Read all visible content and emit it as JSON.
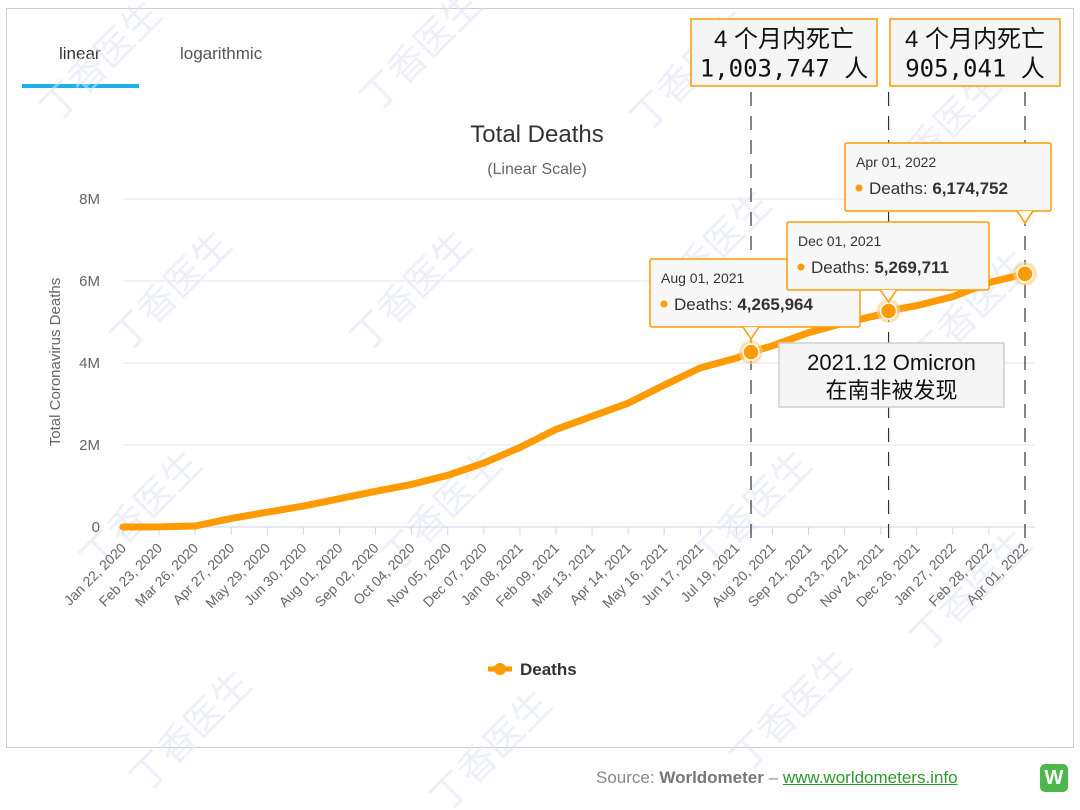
{
  "tabs": [
    {
      "label": "linear",
      "active": true
    },
    {
      "label": "logarithmic",
      "active": false
    }
  ],
  "source": {
    "prefix": "Source:",
    "name": "Worldometer",
    "dash": "–",
    "link": "www.worldometers.info",
    "logo_letter": "W"
  },
  "watermark_text": "丁香医生",
  "colors": {
    "series": "#ff9a00",
    "accent": "#1ab2e8",
    "grid": "#e6e6e6",
    "axis": "#ccd6eb"
  },
  "chart_data": {
    "type": "line",
    "title": "Total Deaths",
    "subtitle": "(Linear Scale)",
    "xlabel": "",
    "ylabel": "Total Coronavirus Deaths",
    "ylim": [
      0,
      8000000
    ],
    "y_ticks": [
      {
        "value": 0,
        "label": "0"
      },
      {
        "value": 2000000,
        "label": "2M"
      },
      {
        "value": 4000000,
        "label": "4M"
      },
      {
        "value": 6000000,
        "label": "6M"
      },
      {
        "value": 8000000,
        "label": "8M"
      }
    ],
    "x_tick_labels": [
      "Jan 22, 2020",
      "Feb 23, 2020",
      "Mar 26, 2020",
      "Apr 27, 2020",
      "May 29, 2020",
      "Jun 30, 2020",
      "Aug 01, 2020",
      "Sep 02, 2020",
      "Oct 04, 2020",
      "Nov 05, 2020",
      "Dec 07, 2020",
      "Jan 08, 2021",
      "Feb 09, 2021",
      "Mar 13, 2021",
      "Apr 14, 2021",
      "May 16, 2021",
      "Jun 17, 2021",
      "Jul 19, 2021",
      "Aug 20, 2021",
      "Sep 21, 2021",
      "Oct 23, 2021",
      "Nov 24, 2021",
      "Dec 26, 2021",
      "Jan 27, 2022",
      "Feb 28, 2022",
      "Apr 01, 2022"
    ],
    "legend": {
      "label": "Deaths",
      "position": "bottom-center"
    },
    "grid": true,
    "series": [
      {
        "name": "Deaths",
        "x": [
          "Jan 22, 2020",
          "Feb 23, 2020",
          "Mar 26, 2020",
          "Apr 27, 2020",
          "May 29, 2020",
          "Jun 30, 2020",
          "Aug 01, 2020",
          "Sep 02, 2020",
          "Oct 04, 2020",
          "Nov 05, 2020",
          "Dec 07, 2020",
          "Jan 08, 2021",
          "Feb 09, 2021",
          "Mar 13, 2021",
          "Apr 14, 2021",
          "May 16, 2021",
          "Jun 17, 2021",
          "Jul 19, 2021",
          "Aug 01, 2021",
          "Aug 20, 2021",
          "Sep 21, 2021",
          "Oct 23, 2021",
          "Nov 24, 2021",
          "Dec 01, 2021",
          "Dec 26, 2021",
          "Jan 27, 2022",
          "Feb 28, 2022",
          "Apr 01, 2022"
        ],
        "values": [
          17,
          2000,
          25000,
          210000,
          360000,
          510000,
          690000,
          870000,
          1040000,
          1260000,
          1560000,
          1940000,
          2380000,
          2700000,
          3020000,
          3460000,
          3880000,
          4120000,
          4265964,
          4420000,
          4740000,
          4980000,
          5180000,
          5269711,
          5400000,
          5620000,
          5960000,
          6174752
        ]
      }
    ],
    "tooltips": [
      {
        "date": "Aug 01, 2021",
        "label": "Deaths:",
        "value": "4,265,964",
        "y": 4265964
      },
      {
        "date": "Dec 01, 2021",
        "label": "Deaths:",
        "value": "5,269,711",
        "y": 5269711
      },
      {
        "date": "Apr 01, 2022",
        "label": "Deaths:",
        "value": "6,174,752",
        "y": 6174752
      }
    ],
    "annotations": [
      {
        "line1": "4 个月内死亡",
        "line2": "1,003,747 人"
      },
      {
        "line1": "4 个月内死亡",
        "line2": "905,041 人"
      },
      {
        "line1": "2021.12 Omicron",
        "line2": "在南非被发现"
      }
    ]
  }
}
